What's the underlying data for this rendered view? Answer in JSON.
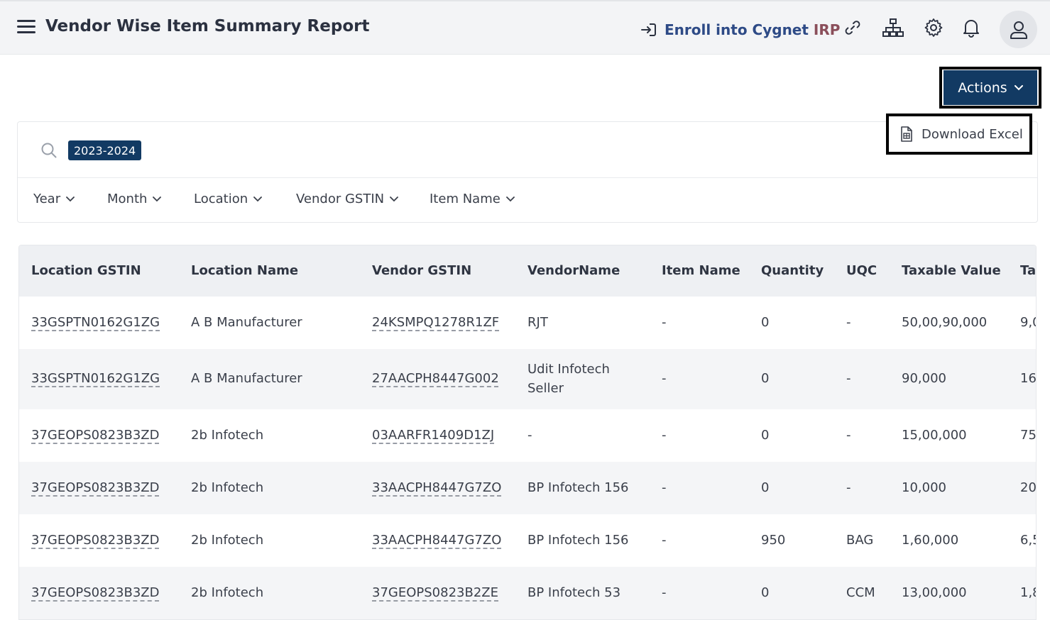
{
  "header": {
    "title": "Vendor Wise Item Summary Report",
    "enroll_label": "Enroll into Cygnet ",
    "enroll_suffix": "IRP",
    "icons": [
      "link-icon",
      "sitemap-icon",
      "gear-icon",
      "bell-icon",
      "user-icon"
    ]
  },
  "actions": {
    "label": "Actions",
    "menu": [
      {
        "label": "Download Excel",
        "icon": "excel-file-icon"
      }
    ]
  },
  "search": {
    "chip": "2023-2024"
  },
  "filters": [
    "Year",
    "Month",
    "Location",
    "Vendor GSTIN",
    "Item Name"
  ],
  "table": {
    "columns": [
      "Location GSTIN",
      "Location Name",
      "Vendor GSTIN",
      "VendorName",
      "Item Name",
      "Quantity",
      "UQC",
      "Taxable Value",
      "Ta"
    ],
    "rows": [
      [
        "33GSPTN0162G1ZG",
        "A B Manufacturer",
        "24KSMPQ1278R1ZF",
        "RJT",
        "-",
        "0",
        "-",
        "50,00,90,000",
        "9,0"
      ],
      [
        "33GSPTN0162G1ZG",
        "A B Manufacturer",
        "27AACPH8447G002",
        "Udit Infotech Seller",
        "-",
        "0",
        "-",
        "90,000",
        "16,"
      ],
      [
        "37GEOPS0823B3ZD",
        "2b Infotech",
        "03AARFR1409D1ZJ",
        "-",
        "-",
        "0",
        "-",
        "15,00,000",
        "75,"
      ],
      [
        "37GEOPS0823B3ZD",
        "2b Infotech",
        "33AACPH8447G7ZO",
        "BP Infotech 156",
        "-",
        "0",
        "-",
        "10,000",
        "20"
      ],
      [
        "37GEOPS0823B3ZD",
        "2b Infotech",
        "33AACPH8447G7ZO",
        "BP Infotech 156",
        "-",
        "950",
        "BAG",
        "1,60,000",
        "6,5"
      ],
      [
        "37GEOPS0823B3ZD",
        "2b Infotech",
        "37GEOPS0823B2ZE",
        "BP Infotech 53",
        "-",
        "0",
        "CCM",
        "13,00,000",
        "1,8"
      ]
    ]
  },
  "colors": {
    "primary": "#123a63",
    "enroll_text": "#2d4a86",
    "enroll_accent": "#8a4e5a"
  }
}
